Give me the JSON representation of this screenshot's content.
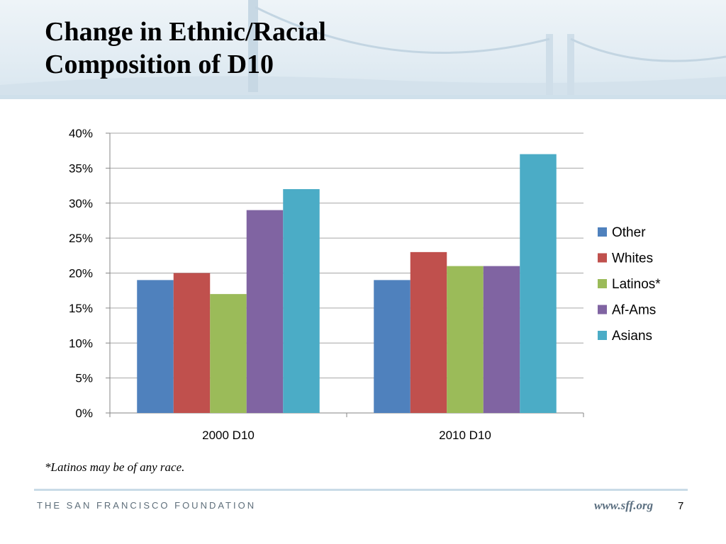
{
  "slide": {
    "title_line1": "Change in Ethnic/Racial",
    "title_line2": "Composition of D10",
    "footnote": "*Latinos may be of any race.",
    "footer_org": "THE SAN FRANCISCO FOUNDATION",
    "footer_url": "www.sff.org",
    "page_number": "7"
  },
  "chart_data": {
    "type": "bar",
    "categories": [
      "2000 D10",
      "2010 D10"
    ],
    "series": [
      {
        "name": "Other",
        "color": "#4f81bd",
        "values": [
          19,
          19
        ]
      },
      {
        "name": "Whites",
        "color": "#c0504d",
        "values": [
          20,
          23
        ]
      },
      {
        "name": "Latinos*",
        "color": "#9bbb59",
        "values": [
          17,
          21
        ]
      },
      {
        "name": "Af-Ams",
        "color": "#8064a2",
        "values": [
          29,
          21
        ]
      },
      {
        "name": "Asians",
        "color": "#4bacc6",
        "values": [
          32,
          37
        ]
      }
    ],
    "y_ticks": [
      "0%",
      "5%",
      "10%",
      "15%",
      "20%",
      "25%",
      "30%",
      "35%",
      "40%"
    ],
    "ylim": [
      0,
      40
    ],
    "y_unit": "%",
    "grid": true,
    "legend": "right"
  }
}
